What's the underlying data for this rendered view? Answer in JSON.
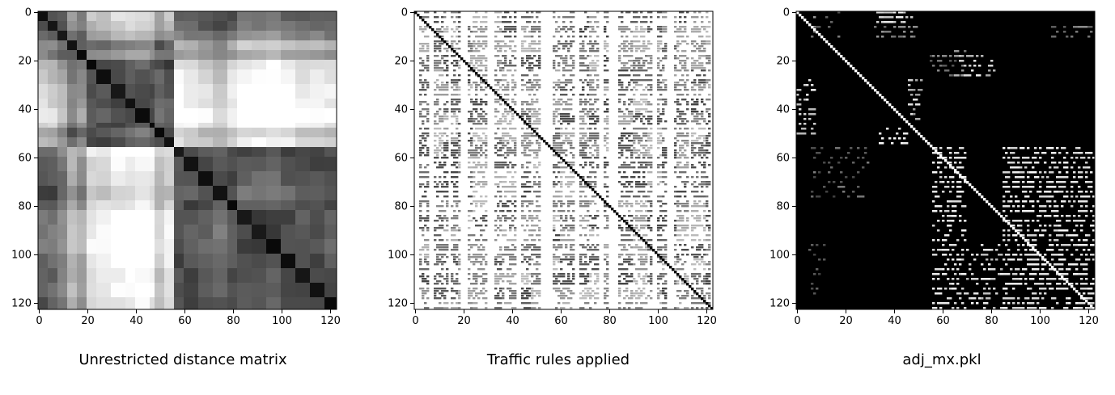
{
  "chart_data": [
    {
      "type": "heatmap",
      "title": "Unrestricted distance matrix",
      "xlabel": "",
      "ylabel": "",
      "xlim": [
        0,
        123
      ],
      "ylim": [
        123,
        0
      ],
      "x_ticks": [
        "0",
        "20",
        "40",
        "60",
        "80",
        "100",
        "120"
      ],
      "y_ticks": [
        "0",
        "20",
        "40",
        "60",
        "80",
        "100",
        "120"
      ],
      "colormap": "gray",
      "size": 123,
      "group_bounds": [
        0,
        4,
        8,
        12,
        16,
        20,
        24,
        30,
        36,
        40,
        46,
        48,
        52,
        56,
        60,
        66,
        72,
        78,
        82,
        88,
        94,
        100,
        106,
        112,
        118,
        123
      ],
      "group_positions": [
        0.18,
        0.22,
        0.3,
        0.48,
        0.4,
        0.62,
        0.65,
        0.7,
        0.72,
        0.75,
        0.7,
        0.55,
        0.62,
        0.05,
        0.1,
        0.14,
        0.2,
        0.12,
        0.02,
        0.01,
        0.0,
        0.05,
        0.1,
        0.08,
        0.12
      ]
    },
    {
      "type": "heatmap",
      "title": "Traffic rules applied",
      "xlabel": "",
      "ylabel": "",
      "xlim": [
        0,
        123
      ],
      "ylim": [
        123,
        0
      ],
      "x_ticks": [
        "0",
        "20",
        "40",
        "60",
        "80",
        "100",
        "120"
      ],
      "y_ticks": [
        "0",
        "20",
        "40",
        "60",
        "80",
        "100",
        "120"
      ],
      "colormap": "gray",
      "size": 123,
      "pattern": "sparse blocks, white background, black diagonal"
    },
    {
      "type": "heatmap",
      "title": "adj_mx.pkl",
      "xlabel": "",
      "ylabel": "",
      "xlim": [
        0,
        123
      ],
      "ylim": [
        123,
        0
      ],
      "x_ticks": [
        "0",
        "20",
        "40",
        "60",
        "80",
        "100",
        "120"
      ],
      "y_ticks": [
        "0",
        "20",
        "40",
        "60",
        "80",
        "100",
        "120"
      ],
      "colormap": "gray",
      "size": 123,
      "pattern": "sparse blocks, black background, white diagonal"
    }
  ]
}
